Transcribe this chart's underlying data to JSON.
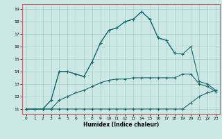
{
  "xlabel": "Humidex (Indice chaleur)",
  "xlim": [
    -0.5,
    23.5
  ],
  "ylim": [
    10.6,
    19.4
  ],
  "xticks": [
    0,
    1,
    2,
    3,
    4,
    5,
    6,
    7,
    8,
    9,
    10,
    11,
    12,
    13,
    14,
    15,
    16,
    17,
    18,
    19,
    20,
    21,
    22,
    23
  ],
  "yticks": [
    11,
    12,
    13,
    14,
    15,
    16,
    17,
    18,
    19
  ],
  "bg_color": "#cce8e5",
  "grid_color": "#aaccca",
  "line_color": "#1a6b6b",
  "spine_color": "#cc6666",
  "line1_x": [
    0,
    1,
    2,
    3,
    4,
    5,
    6,
    7,
    8,
    9,
    10,
    11,
    12,
    13,
    14,
    15,
    16,
    17,
    18,
    19,
    20,
    21,
    22,
    23
  ],
  "line1_y": [
    11,
    11,
    11,
    11,
    11,
    11,
    11,
    11,
    11,
    11,
    11,
    11,
    11,
    11,
    11,
    11,
    11,
    11,
    11,
    11,
    11.5,
    12.0,
    12.3,
    12.5
  ],
  "line2_x": [
    0,
    1,
    2,
    3,
    4,
    5,
    6,
    7,
    8,
    9,
    10,
    11,
    12,
    13,
    14,
    15,
    16,
    17,
    18,
    19,
    20,
    21,
    22,
    23
  ],
  "line2_y": [
    11,
    11,
    11,
    11,
    11.7,
    12.0,
    12.3,
    12.5,
    12.8,
    13.1,
    13.3,
    13.4,
    13.4,
    13.5,
    13.5,
    13.5,
    13.5,
    13.5,
    13.5,
    13.8,
    13.8,
    13.0,
    12.8,
    12.4
  ],
  "line3_x": [
    0,
    2,
    3,
    4,
    5,
    6,
    7,
    8,
    9,
    10,
    11,
    12,
    13,
    14,
    15,
    16,
    17,
    18,
    19,
    20,
    21,
    22,
    23
  ],
  "line3_y": [
    11,
    11,
    11.7,
    14.0,
    14.0,
    13.8,
    13.6,
    14.8,
    16.3,
    17.3,
    17.5,
    18.0,
    18.2,
    18.8,
    18.2,
    16.7,
    16.5,
    15.5,
    15.4,
    16.0,
    13.2,
    13.0,
    12.5
  ],
  "line4_x": [
    0,
    2,
    3,
    4,
    5,
    6,
    7,
    8,
    9,
    10,
    11,
    12,
    13,
    14,
    15,
    16,
    17,
    18
  ],
  "line4_y": [
    11,
    11,
    11.7,
    14.0,
    14.0,
    13.8,
    13.6,
    14.8,
    16.3,
    17.3,
    17.5,
    18.0,
    18.2,
    18.8,
    18.2,
    16.7,
    16.5,
    15.5
  ]
}
